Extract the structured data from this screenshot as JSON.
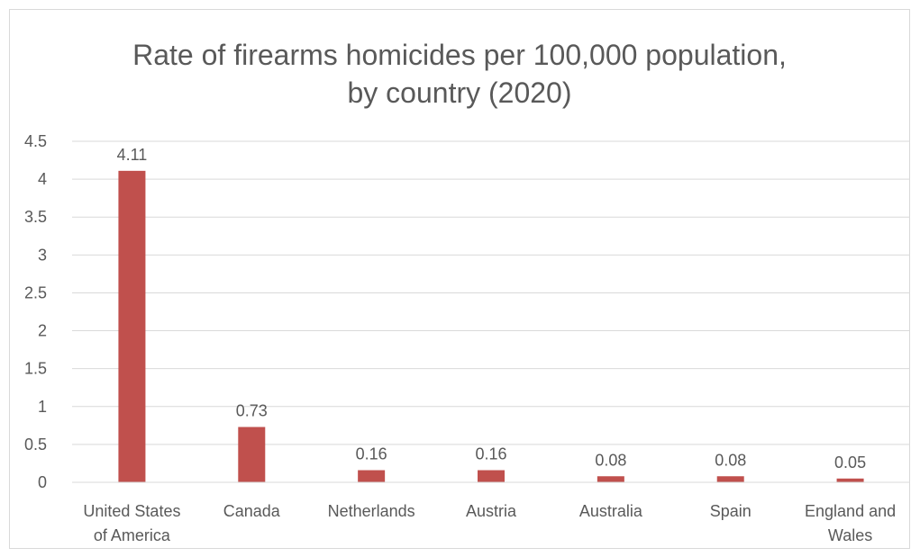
{
  "chart_data": {
    "type": "bar",
    "title_line1": "Rate of firearms homicides per 100,000 population,",
    "title_line2": "by country (2020)",
    "categories": [
      [
        "United States",
        "of America"
      ],
      [
        "Canada"
      ],
      [
        "Netherlands"
      ],
      [
        "Austria"
      ],
      [
        "Australia"
      ],
      [
        "Spain"
      ],
      [
        "England and",
        "Wales"
      ]
    ],
    "values": [
      4.11,
      0.73,
      0.16,
      0.16,
      0.08,
      0.08,
      0.05
    ],
    "data_labels": [
      "4.11",
      "0.73",
      "0.16",
      "0.16",
      "0.08",
      "0.08",
      "0.05"
    ],
    "y_ticks": [
      "0",
      "0.5",
      "1",
      "1.5",
      "2",
      "2.5",
      "3",
      "3.5",
      "4",
      "4.5"
    ],
    "ylim": [
      0,
      4.5
    ],
    "xlabel": "",
    "ylabel": "",
    "grid": true,
    "legend": "none",
    "bar_color": "#c0504d",
    "grid_color": "#d9d9d9"
  }
}
